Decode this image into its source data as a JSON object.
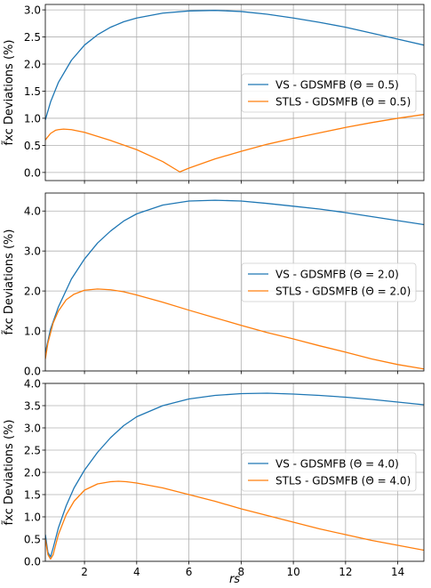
{
  "chart_data": [
    {
      "type": "line",
      "ylabel": "f̃xc Deviations (%)",
      "xlim": [
        0.5,
        15
      ],
      "ylim": [
        -0.15,
        3.1
      ],
      "yticks": [
        0.0,
        0.5,
        1.0,
        1.5,
        2.0,
        2.5,
        3.0
      ],
      "ytick_labels": [
        "0.0",
        "0.5",
        "1.0",
        "1.5",
        "2.0",
        "2.5",
        "3.0"
      ],
      "xticks": [
        2,
        4,
        6,
        8,
        10,
        12,
        14
      ],
      "xtick_labels": [],
      "grid": true,
      "legend": "center-right",
      "series": [
        {
          "name": "VS - GDSMFB (Θ =  0.5)",
          "color": "#1f77b4",
          "x": [
            0.5,
            0.7,
            1.0,
            1.5,
            2.0,
            2.5,
            3.0,
            3.5,
            4.0,
            5.0,
            6.0,
            7.0,
            8.0,
            9.0,
            10.0,
            11.0,
            12.0,
            13.0,
            14.0,
            15.0
          ],
          "values": [
            0.97,
            1.3,
            1.66,
            2.07,
            2.35,
            2.54,
            2.68,
            2.78,
            2.85,
            2.94,
            2.98,
            2.99,
            2.97,
            2.92,
            2.85,
            2.77,
            2.68,
            2.57,
            2.46,
            2.35
          ]
        },
        {
          "name": "STLS - GDSMFB (Θ =  0.5)",
          "color": "#ff7f0e",
          "x": [
            0.5,
            0.7,
            0.9,
            1.0,
            1.2,
            1.5,
            2.0,
            3.0,
            4.0,
            5.0,
            5.65,
            6.0,
            7.0,
            8.0,
            9.0,
            10.0,
            11.0,
            12.0,
            13.0,
            14.0,
            15.0
          ],
          "values": [
            0.6,
            0.72,
            0.78,
            0.79,
            0.8,
            0.79,
            0.74,
            0.59,
            0.42,
            0.2,
            0.01,
            0.08,
            0.25,
            0.39,
            0.52,
            0.63,
            0.73,
            0.83,
            0.92,
            1.0,
            1.07
          ]
        }
      ]
    },
    {
      "type": "line",
      "ylabel": "f̃xc Deviations (%)",
      "xlim": [
        0.5,
        15
      ],
      "ylim": [
        0.0,
        4.45
      ],
      "yticks": [
        0.0,
        1.0,
        2.0,
        3.0,
        4.0
      ],
      "ytick_labels": [
        "0.0",
        "1.0",
        "2.0",
        "3.0",
        "4.0"
      ],
      "xticks": [
        2,
        4,
        6,
        8,
        10,
        12,
        14
      ],
      "xtick_labels": [],
      "grid": true,
      "legend": "center-right",
      "series": [
        {
          "name": "VS - GDSMFB (Θ =  2.0)",
          "color": "#1f77b4",
          "x": [
            0.5,
            0.7,
            1.0,
            1.5,
            2.0,
            2.5,
            3.0,
            3.5,
            4.0,
            5.0,
            6.0,
            7.0,
            8.0,
            9.0,
            10.0,
            11.0,
            12.0,
            13.0,
            14.0,
            15.0
          ],
          "values": [
            0.45,
            1.05,
            1.6,
            2.3,
            2.8,
            3.2,
            3.5,
            3.75,
            3.93,
            4.15,
            4.25,
            4.27,
            4.25,
            4.19,
            4.12,
            4.05,
            3.96,
            3.86,
            3.76,
            3.66
          ]
        },
        {
          "name": "STLS - GDSMFB (Θ =  2.0)",
          "color": "#ff7f0e",
          "x": [
            0.5,
            0.6,
            0.8,
            1.0,
            1.3,
            1.6,
            2.0,
            2.5,
            3.0,
            3.5,
            4.0,
            5.0,
            6.0,
            7.0,
            8.0,
            9.0,
            10.0,
            11.0,
            12.0,
            13.0,
            14.0,
            15.0
          ],
          "values": [
            0.3,
            0.7,
            1.2,
            1.5,
            1.78,
            1.92,
            2.02,
            2.05,
            2.03,
            1.98,
            1.9,
            1.72,
            1.52,
            1.33,
            1.14,
            0.96,
            0.8,
            0.63,
            0.47,
            0.3,
            0.16,
            0.05
          ]
        }
      ]
    },
    {
      "type": "line",
      "xlabel": "rs",
      "ylabel": "f̃xc Deviations (%)",
      "xlim": [
        0.5,
        15
      ],
      "ylim": [
        0.0,
        4.0
      ],
      "yticks": [
        0.0,
        0.5,
        1.0,
        1.5,
        2.0,
        2.5,
        3.0,
        3.5,
        4.0
      ],
      "ytick_labels": [
        "0.0",
        "0.5",
        "1.0",
        "1.5",
        "2.0",
        "2.5",
        "3.0",
        "3.5",
        "4.0"
      ],
      "xticks": [
        2,
        4,
        6,
        8,
        10,
        12,
        14
      ],
      "xtick_labels": [
        "2",
        "4",
        "6",
        "8",
        "10",
        "12",
        "14"
      ],
      "grid": true,
      "legend": "center-right",
      "series": [
        {
          "name": "VS - GDSMFB (Θ =  4.0)",
          "color": "#1f77b4",
          "x": [
            0.5,
            0.6,
            0.7,
            0.8,
            1.0,
            1.3,
            1.6,
            2.0,
            2.5,
            3.0,
            3.5,
            4.0,
            5.0,
            6.0,
            7.0,
            8.0,
            9.0,
            10.0,
            11.0,
            12.0,
            13.0,
            14.0,
            15.0
          ],
          "values": [
            0.6,
            0.2,
            0.1,
            0.3,
            0.75,
            1.25,
            1.65,
            2.05,
            2.45,
            2.78,
            3.05,
            3.25,
            3.5,
            3.65,
            3.73,
            3.77,
            3.78,
            3.76,
            3.73,
            3.69,
            3.64,
            3.58,
            3.52
          ]
        },
        {
          "name": "STLS - GDSMFB (Θ =  4.0)",
          "color": "#ff7f0e",
          "x": [
            0.5,
            0.6,
            0.7,
            0.8,
            1.0,
            1.3,
            1.6,
            2.0,
            2.5,
            3.0,
            3.3,
            3.6,
            4.0,
            5.0,
            6.0,
            7.0,
            8.0,
            9.0,
            10.0,
            11.0,
            12.0,
            13.0,
            14.0,
            15.0
          ],
          "values": [
            0.5,
            0.15,
            0.05,
            0.15,
            0.6,
            1.05,
            1.35,
            1.6,
            1.74,
            1.79,
            1.8,
            1.79,
            1.76,
            1.65,
            1.5,
            1.35,
            1.18,
            1.03,
            0.88,
            0.73,
            0.6,
            0.47,
            0.36,
            0.25
          ]
        }
      ]
    }
  ]
}
